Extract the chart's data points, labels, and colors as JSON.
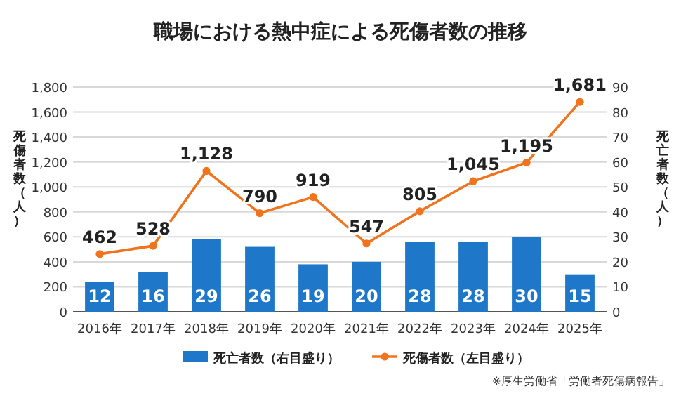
{
  "chart_data": {
    "type": "bar",
    "title": "職場における熱中症による死傷者数の推移",
    "categories": [
      "2016年",
      "2017年",
      "2018年",
      "2019年",
      "2020年",
      "2021年",
      "2022年",
      "2023年",
      "2024年",
      "2025年"
    ],
    "series": [
      {
        "name": "死亡者数（右目盛り）",
        "axis": "y2",
        "color": "#1f77c9",
        "values": [
          12,
          16,
          29,
          26,
          19,
          20,
          28,
          28,
          30,
          15
        ],
        "value_labels": [
          "12",
          "16",
          "29",
          "26",
          "19",
          "20",
          "28",
          "28",
          "30",
          "15"
        ]
      },
      {
        "name": "死傷者数（左目盛り）",
        "type": "line",
        "color": "#f0731e",
        "marker": "circle",
        "values": [
          462,
          528,
          1128,
          790,
          919,
          547,
          805,
          1045,
          1195,
          1681
        ],
        "value_labels": [
          "462",
          "528",
          "1,128",
          "790",
          "919",
          "547",
          "805",
          "1,045",
          "1,195",
          "1,681"
        ]
      }
    ],
    "ylabel": "死傷者数（人）",
    "y2label": "死亡者数（人）",
    "ylim": [
      0,
      1800
    ],
    "yticks": [
      0,
      200,
      400,
      600,
      800,
      {
        "value": 1000,
        "label": "1,000"
      },
      {
        "value": 1200,
        "label": "1,200"
      },
      {
        "value": 1400,
        "label": "1,400"
      },
      {
        "value": 1600,
        "label": "1,600"
      },
      {
        "value": 1800,
        "label": "1,800"
      }
    ],
    "y2lim": [
      0,
      90
    ],
    "y2ticks": [
      0,
      10,
      20,
      30,
      40,
      50,
      60,
      70,
      80,
      90
    ],
    "grid": "y",
    "legend": "bottom",
    "annotations": [
      "※厚生労働省「労働者死傷病報告」"
    ]
  }
}
